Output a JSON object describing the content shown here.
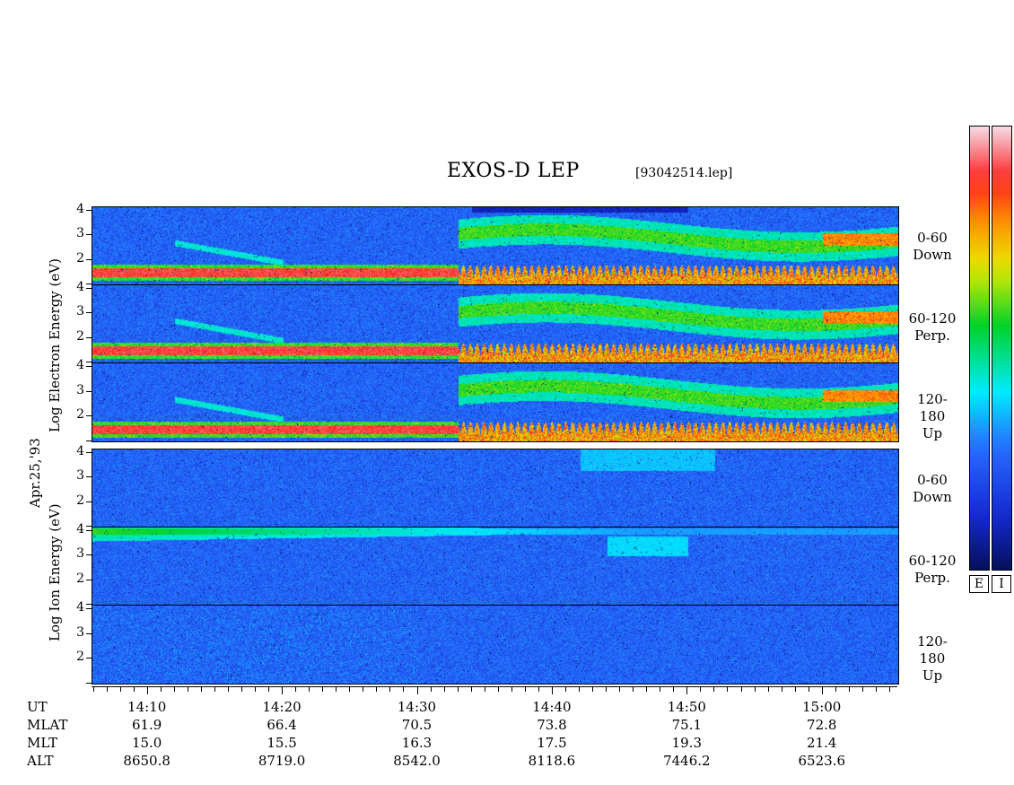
{
  "header": {
    "title": "EXOS-D LEP",
    "filename": "[93042514.lep]"
  },
  "date_label": "Apr.25,'93",
  "electron_group_label": "Log  Electron  Energy (eV)",
  "ion_group_label": "Log   Ion   Energy (eV)",
  "colorbar": {
    "labels": [
      "E",
      "I"
    ]
  },
  "panels": [
    {
      "id": "e-down",
      "group": "electron",
      "label_line1": "0-60",
      "label_line2": "Down"
    },
    {
      "id": "e-perp",
      "group": "electron",
      "label_line1": "60-120",
      "label_line2": "Perp."
    },
    {
      "id": "e-up",
      "group": "electron",
      "label_line1": "120-180",
      "label_line2": "Up"
    },
    {
      "id": "i-down",
      "group": "ion",
      "label_line1": "0-60",
      "label_line2": "Down"
    },
    {
      "id": "i-perp",
      "group": "ion",
      "label_line1": "60-120",
      "label_line2": "Perp."
    },
    {
      "id": "i-up",
      "group": "ion",
      "label_line1": "120-180",
      "label_line2": "Up"
    }
  ],
  "y_ticks": [
    "4",
    "3",
    "2"
  ],
  "ephemeris": {
    "row_names": [
      "UT",
      "MLAT",
      "MLT",
      "ALT"
    ],
    "columns": [
      {
        "UT": "14:10",
        "MLAT": "61.9",
        "MLT": "15.0",
        "ALT": "8650.8"
      },
      {
        "UT": "14:20",
        "MLAT": "66.4",
        "MLT": "15.5",
        "ALT": "8719.0"
      },
      {
        "UT": "14:30",
        "MLAT": "70.5",
        "MLT": "16.3",
        "ALT": "8542.0"
      },
      {
        "UT": "14:40",
        "MLAT": "73.8",
        "MLT": "17.5",
        "ALT": "8118.6"
      },
      {
        "UT": "14:50",
        "MLAT": "75.1",
        "MLT": "19.3",
        "ALT": "7446.2"
      },
      {
        "UT": "15:00",
        "MLAT": "72.8",
        "MLT": "21.4",
        "ALT": "6523.6"
      }
    ]
  },
  "chart_data": {
    "type": "heatmap",
    "title": "EXOS-D LEP",
    "x_unit": "UT (minutes after 14:00)",
    "x_range": [
      5.9,
      65.6
    ],
    "x_ticks": [
      10,
      20,
      30,
      40,
      50,
      60
    ],
    "y_range_log_eV": [
      1.0,
      4.15
    ],
    "y_ticks": [
      2,
      3,
      4
    ],
    "colormap": [
      "#f4e8ee",
      "#ff2a2a",
      "#ff9a00",
      "#ffee00",
      "#00d000",
      "#00ffff",
      "#1a3cff",
      "#05105a"
    ],
    "features": {
      "electron_low_energy_band_logE": 1.5,
      "electron_activity_onset_min": 33,
      "electron_arc_peaks_logE": 2.9,
      "ion_high_energy_band_logE": 4.0,
      "ion_band_fade_min": 46
    }
  }
}
